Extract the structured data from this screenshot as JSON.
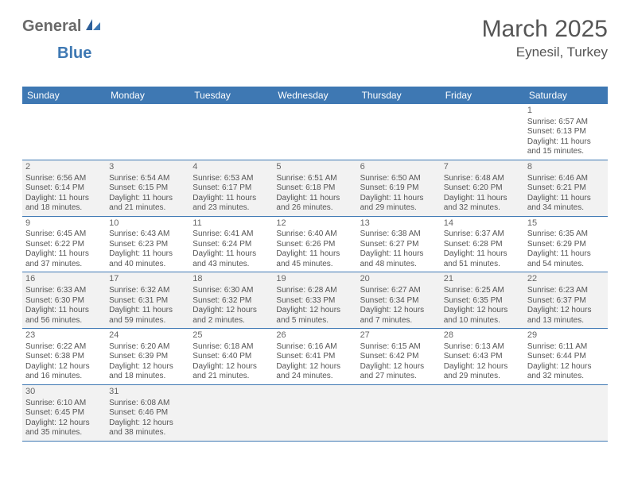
{
  "logo": {
    "general": "General",
    "blue": "Blue"
  },
  "title": "March 2025",
  "location": "Eynesil, Turkey",
  "theme": {
    "header_bg": "#3e78b3",
    "header_fg": "#ffffff",
    "shade_bg": "#f2f2f2",
    "text_color": "#555555",
    "border_color": "#3e78b3",
    "title_fontsize": 30,
    "location_fontsize": 17,
    "dow_fontsize": 12,
    "cell_fontsize": 10
  },
  "days_of_week": [
    "Sunday",
    "Monday",
    "Tuesday",
    "Wednesday",
    "Thursday",
    "Friday",
    "Saturday"
  ],
  "weeks": [
    {
      "shade": false,
      "cells": [
        {
          "blank": true
        },
        {
          "blank": true
        },
        {
          "blank": true
        },
        {
          "blank": true
        },
        {
          "blank": true
        },
        {
          "blank": true
        },
        {
          "num": "1",
          "sunrise": "Sunrise: 6:57 AM",
          "sunset": "Sunset: 6:13 PM",
          "day1": "Daylight: 11 hours",
          "day2": "and 15 minutes."
        }
      ]
    },
    {
      "shade": true,
      "cells": [
        {
          "num": "2",
          "sunrise": "Sunrise: 6:56 AM",
          "sunset": "Sunset: 6:14 PM",
          "day1": "Daylight: 11 hours",
          "day2": "and 18 minutes."
        },
        {
          "num": "3",
          "sunrise": "Sunrise: 6:54 AM",
          "sunset": "Sunset: 6:15 PM",
          "day1": "Daylight: 11 hours",
          "day2": "and 21 minutes."
        },
        {
          "num": "4",
          "sunrise": "Sunrise: 6:53 AM",
          "sunset": "Sunset: 6:17 PM",
          "day1": "Daylight: 11 hours",
          "day2": "and 23 minutes."
        },
        {
          "num": "5",
          "sunrise": "Sunrise: 6:51 AM",
          "sunset": "Sunset: 6:18 PM",
          "day1": "Daylight: 11 hours",
          "day2": "and 26 minutes."
        },
        {
          "num": "6",
          "sunrise": "Sunrise: 6:50 AM",
          "sunset": "Sunset: 6:19 PM",
          "day1": "Daylight: 11 hours",
          "day2": "and 29 minutes."
        },
        {
          "num": "7",
          "sunrise": "Sunrise: 6:48 AM",
          "sunset": "Sunset: 6:20 PM",
          "day1": "Daylight: 11 hours",
          "day2": "and 32 minutes."
        },
        {
          "num": "8",
          "sunrise": "Sunrise: 6:46 AM",
          "sunset": "Sunset: 6:21 PM",
          "day1": "Daylight: 11 hours",
          "day2": "and 34 minutes."
        }
      ]
    },
    {
      "shade": false,
      "cells": [
        {
          "num": "9",
          "sunrise": "Sunrise: 6:45 AM",
          "sunset": "Sunset: 6:22 PM",
          "day1": "Daylight: 11 hours",
          "day2": "and 37 minutes."
        },
        {
          "num": "10",
          "sunrise": "Sunrise: 6:43 AM",
          "sunset": "Sunset: 6:23 PM",
          "day1": "Daylight: 11 hours",
          "day2": "and 40 minutes."
        },
        {
          "num": "11",
          "sunrise": "Sunrise: 6:41 AM",
          "sunset": "Sunset: 6:24 PM",
          "day1": "Daylight: 11 hours",
          "day2": "and 43 minutes."
        },
        {
          "num": "12",
          "sunrise": "Sunrise: 6:40 AM",
          "sunset": "Sunset: 6:26 PM",
          "day1": "Daylight: 11 hours",
          "day2": "and 45 minutes."
        },
        {
          "num": "13",
          "sunrise": "Sunrise: 6:38 AM",
          "sunset": "Sunset: 6:27 PM",
          "day1": "Daylight: 11 hours",
          "day2": "and 48 minutes."
        },
        {
          "num": "14",
          "sunrise": "Sunrise: 6:37 AM",
          "sunset": "Sunset: 6:28 PM",
          "day1": "Daylight: 11 hours",
          "day2": "and 51 minutes."
        },
        {
          "num": "15",
          "sunrise": "Sunrise: 6:35 AM",
          "sunset": "Sunset: 6:29 PM",
          "day1": "Daylight: 11 hours",
          "day2": "and 54 minutes."
        }
      ]
    },
    {
      "shade": true,
      "cells": [
        {
          "num": "16",
          "sunrise": "Sunrise: 6:33 AM",
          "sunset": "Sunset: 6:30 PM",
          "day1": "Daylight: 11 hours",
          "day2": "and 56 minutes."
        },
        {
          "num": "17",
          "sunrise": "Sunrise: 6:32 AM",
          "sunset": "Sunset: 6:31 PM",
          "day1": "Daylight: 11 hours",
          "day2": "and 59 minutes."
        },
        {
          "num": "18",
          "sunrise": "Sunrise: 6:30 AM",
          "sunset": "Sunset: 6:32 PM",
          "day1": "Daylight: 12 hours",
          "day2": "and 2 minutes."
        },
        {
          "num": "19",
          "sunrise": "Sunrise: 6:28 AM",
          "sunset": "Sunset: 6:33 PM",
          "day1": "Daylight: 12 hours",
          "day2": "and 5 minutes."
        },
        {
          "num": "20",
          "sunrise": "Sunrise: 6:27 AM",
          "sunset": "Sunset: 6:34 PM",
          "day1": "Daylight: 12 hours",
          "day2": "and 7 minutes."
        },
        {
          "num": "21",
          "sunrise": "Sunrise: 6:25 AM",
          "sunset": "Sunset: 6:35 PM",
          "day1": "Daylight: 12 hours",
          "day2": "and 10 minutes."
        },
        {
          "num": "22",
          "sunrise": "Sunrise: 6:23 AM",
          "sunset": "Sunset: 6:37 PM",
          "day1": "Daylight: 12 hours",
          "day2": "and 13 minutes."
        }
      ]
    },
    {
      "shade": false,
      "cells": [
        {
          "num": "23",
          "sunrise": "Sunrise: 6:22 AM",
          "sunset": "Sunset: 6:38 PM",
          "day1": "Daylight: 12 hours",
          "day2": "and 16 minutes."
        },
        {
          "num": "24",
          "sunrise": "Sunrise: 6:20 AM",
          "sunset": "Sunset: 6:39 PM",
          "day1": "Daylight: 12 hours",
          "day2": "and 18 minutes."
        },
        {
          "num": "25",
          "sunrise": "Sunrise: 6:18 AM",
          "sunset": "Sunset: 6:40 PM",
          "day1": "Daylight: 12 hours",
          "day2": "and 21 minutes."
        },
        {
          "num": "26",
          "sunrise": "Sunrise: 6:16 AM",
          "sunset": "Sunset: 6:41 PM",
          "day1": "Daylight: 12 hours",
          "day2": "and 24 minutes."
        },
        {
          "num": "27",
          "sunrise": "Sunrise: 6:15 AM",
          "sunset": "Sunset: 6:42 PM",
          "day1": "Daylight: 12 hours",
          "day2": "and 27 minutes."
        },
        {
          "num": "28",
          "sunrise": "Sunrise: 6:13 AM",
          "sunset": "Sunset: 6:43 PM",
          "day1": "Daylight: 12 hours",
          "day2": "and 29 minutes."
        },
        {
          "num": "29",
          "sunrise": "Sunrise: 6:11 AM",
          "sunset": "Sunset: 6:44 PM",
          "day1": "Daylight: 12 hours",
          "day2": "and 32 minutes."
        }
      ]
    },
    {
      "shade": true,
      "cells": [
        {
          "num": "30",
          "sunrise": "Sunrise: 6:10 AM",
          "sunset": "Sunset: 6:45 PM",
          "day1": "Daylight: 12 hours",
          "day2": "and 35 minutes."
        },
        {
          "num": "31",
          "sunrise": "Sunrise: 6:08 AM",
          "sunset": "Sunset: 6:46 PM",
          "day1": "Daylight: 12 hours",
          "day2": "and 38 minutes."
        },
        {
          "blank": true
        },
        {
          "blank": true
        },
        {
          "blank": true
        },
        {
          "blank": true
        },
        {
          "blank": true
        }
      ]
    }
  ]
}
